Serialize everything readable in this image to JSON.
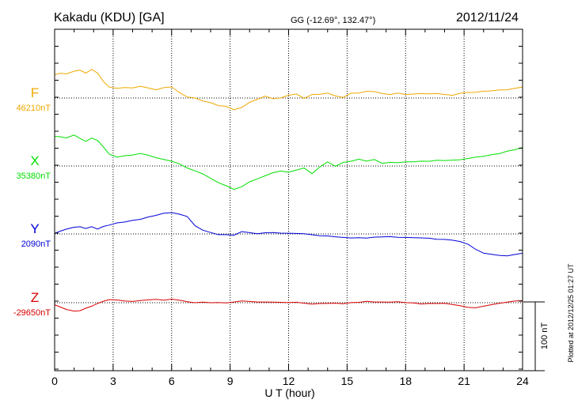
{
  "header": {
    "station": "Kakadu (KDU)  [GA]",
    "coords": "GG (-12.69°, 132.47°)",
    "date": "2012/11/24"
  },
  "colors": {
    "F": "#f0a800",
    "X": "#00e000",
    "Y": "#0000d8",
    "Z": "#d80000",
    "axis": "#000000",
    "grid": "#000000"
  },
  "chart_data": {
    "type": "line",
    "xlabel": "U T (hour)",
    "xlim": [
      0,
      24
    ],
    "xticks": [
      0,
      3,
      6,
      9,
      12,
      15,
      18,
      21,
      24
    ],
    "scale_bar_label": "100 nT",
    "plotted_note": "Plotted at 2012/12/25 01:27 UT",
    "series": [
      {
        "name": "F",
        "baseline": "46210nT",
        "color": "#f0a800",
        "x": [
          0,
          0.3,
          0.6,
          1,
          1.3,
          1.6,
          1.9,
          2.2,
          2.5,
          2.8,
          3.2,
          3.6,
          4,
          4.4,
          4.8,
          5.2,
          5.6,
          6,
          6.4,
          6.8,
          7.2,
          7.6,
          8,
          8.4,
          8.8,
          9.2,
          9.6,
          10,
          10.4,
          10.8,
          11.2,
          11.6,
          12,
          12.4,
          12.8,
          13.2,
          13.6,
          14,
          14.4,
          14.8,
          15.2,
          15.6,
          16,
          16.4,
          16.8,
          17.2,
          17.6,
          18,
          18.4,
          18.8,
          19.2,
          19.6,
          20,
          20.4,
          20.8,
          21.2,
          21.6,
          22,
          22.4,
          22.8,
          23.2,
          23.6,
          24
        ],
        "y": [
          33,
          35,
          34,
          38,
          40,
          36,
          42,
          37,
          25,
          17,
          15,
          16,
          15,
          17,
          14,
          11,
          14,
          15,
          7,
          1,
          0,
          -4,
          -6,
          -10,
          -11,
          -16,
          -13,
          -6,
          -2,
          2,
          -2,
          -1,
          3,
          5,
          -1,
          5,
          6,
          8,
          4,
          2,
          8,
          8,
          10,
          9,
          6,
          4,
          6,
          4,
          5,
          6,
          6,
          7,
          6,
          5,
          8,
          9,
          9,
          10,
          10,
          11,
          11,
          13,
          15
        ]
      },
      {
        "name": "X",
        "baseline": "35380nT",
        "color": "#00e000",
        "x": [
          0,
          0.3,
          0.6,
          1,
          1.3,
          1.6,
          1.9,
          2.2,
          2.5,
          2.8,
          3.2,
          3.6,
          4,
          4.4,
          4.8,
          5.2,
          5.6,
          6,
          6.4,
          6.8,
          7.2,
          7.6,
          8,
          8.4,
          8.8,
          9.2,
          9.6,
          10,
          10.4,
          10.8,
          11.2,
          11.6,
          12,
          12.4,
          12.8,
          13.2,
          13.6,
          14,
          14.4,
          14.8,
          15.2,
          15.6,
          16,
          16.4,
          16.8,
          17.2,
          17.6,
          18,
          18.4,
          18.8,
          19.2,
          19.6,
          20,
          20.4,
          20.8,
          21.2,
          21.6,
          22,
          22.4,
          22.8,
          23.2,
          23.6,
          24
        ],
        "y": [
          43,
          42,
          40,
          44,
          39,
          35,
          40,
          37,
          28,
          18,
          14,
          16,
          17,
          19,
          16,
          12,
          9,
          6,
          2,
          -4,
          -8,
          -12,
          -18,
          -24,
          -28,
          -33,
          -29,
          -22,
          -18,
          -14,
          -10,
          -8,
          -10,
          -7,
          -4,
          -12,
          -2,
          6,
          0,
          6,
          8,
          11,
          8,
          10,
          4,
          5,
          4,
          5,
          5,
          6,
          6,
          8,
          8,
          9,
          10,
          12,
          14,
          15,
          17,
          18,
          21,
          23,
          26
        ]
      },
      {
        "name": "Y",
        "baseline": "2090nT",
        "color": "#0000d8",
        "x": [
          0,
          0.3,
          0.6,
          1,
          1.3,
          1.6,
          1.9,
          2.2,
          2.5,
          2.8,
          3.2,
          3.6,
          4,
          4.4,
          4.8,
          5.2,
          5.6,
          6,
          6.4,
          6.8,
          7.2,
          7.6,
          8,
          8.4,
          8.8,
          9.2,
          9.6,
          10,
          10.4,
          10.8,
          11.2,
          11.6,
          12,
          12.4,
          12.8,
          13.2,
          13.6,
          14,
          14.4,
          14.8,
          15.2,
          15.6,
          16,
          16.4,
          16.8,
          17.2,
          17.6,
          18,
          18.4,
          18.8,
          19.2,
          19.6,
          20,
          20.4,
          20.8,
          21.2,
          21.6,
          22,
          22.4,
          22.8,
          23.2,
          23.6,
          24
        ],
        "y": [
          0,
          3,
          6,
          9,
          10,
          8,
          11,
          8,
          12,
          14,
          17,
          18,
          20,
          21,
          24,
          26,
          29,
          30,
          28,
          25,
          12,
          6,
          3,
          0,
          0,
          -1,
          4,
          2,
          0,
          1,
          1,
          0,
          0,
          0,
          0,
          -1,
          -2,
          -2,
          -3,
          -4,
          -5,
          -5,
          -6,
          -5,
          -5,
          -5,
          -6,
          -6,
          -6,
          -6,
          -6,
          -7,
          -7,
          -8,
          -10,
          -14,
          -22,
          -28,
          -30,
          -32,
          -33,
          -31,
          -29
        ]
      },
      {
        "name": "Z",
        "baseline": "-29650nT",
        "color": "#d80000",
        "x": [
          0,
          0.3,
          0.6,
          1,
          1.3,
          1.6,
          1.9,
          2.2,
          2.5,
          2.8,
          3.2,
          3.6,
          4,
          4.4,
          4.8,
          5.2,
          5.6,
          6,
          6.4,
          6.8,
          7.2,
          7.6,
          8,
          8.4,
          8.8,
          9.2,
          9.6,
          10,
          10.4,
          10.8,
          11.2,
          11.6,
          12,
          12.4,
          12.8,
          13.2,
          13.6,
          14,
          14.4,
          14.8,
          15.2,
          15.6,
          16,
          16.4,
          16.8,
          17.2,
          17.6,
          18,
          18.4,
          18.8,
          19.2,
          19.6,
          20,
          20.4,
          20.8,
          21.2,
          21.6,
          22,
          22.4,
          22.8,
          23.2,
          23.6,
          24
        ],
        "y": [
          -4,
          -7,
          -10,
          -12,
          -11,
          -7,
          -4,
          0,
          3,
          5,
          4,
          2,
          1,
          2,
          3,
          4,
          3,
          5,
          4,
          2,
          1,
          2,
          1,
          1,
          0,
          1,
          2,
          1,
          0,
          0,
          0,
          0,
          0,
          1,
          0,
          -1,
          0,
          0,
          0,
          -1,
          0,
          0,
          1,
          0,
          0,
          0,
          1,
          0,
          0,
          -1,
          0,
          0,
          0,
          -2,
          -4,
          -7,
          -8,
          -6,
          -4,
          -2,
          0,
          2,
          3
        ]
      }
    ]
  }
}
